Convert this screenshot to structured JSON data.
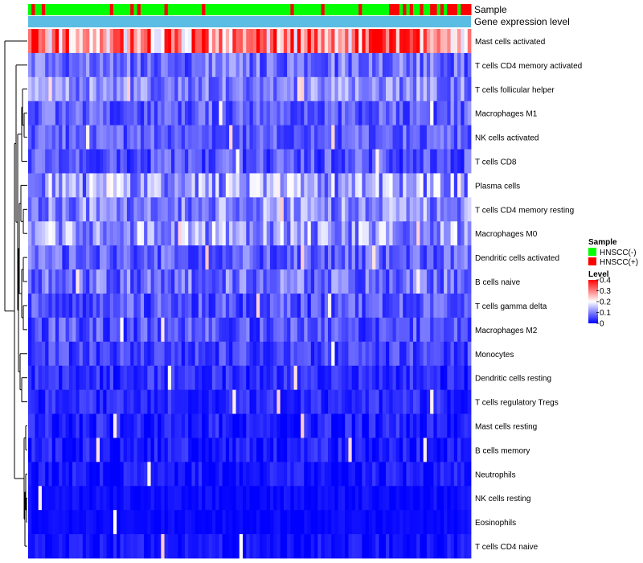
{
  "chart_data": {
    "type": "heatmap",
    "title": "",
    "column_annotations": [
      {
        "name": "Sample",
        "color_by": "group"
      },
      {
        "name": "Gene expression level",
        "color": "#5BBCE4"
      }
    ],
    "n_columns": 130,
    "group_pattern": [
      0,
      1,
      0,
      0,
      1,
      0,
      0,
      0,
      0,
      0,
      0,
      0,
      0,
      0,
      0,
      0,
      0,
      0,
      0,
      0,
      0,
      0,
      0,
      0,
      1,
      0,
      0,
      0,
      0,
      0,
      1,
      0,
      1,
      0,
      0,
      0,
      0,
      0,
      0,
      0,
      1,
      0,
      0,
      0,
      0,
      0,
      0,
      0,
      0,
      0,
      0,
      1,
      0,
      0,
      0,
      0,
      0,
      0,
      0,
      0,
      0,
      0,
      0,
      0,
      0,
      0,
      0,
      0,
      0,
      0,
      0,
      0,
      0,
      0,
      0,
      0,
      0,
      1,
      0,
      0,
      0,
      0,
      0,
      0,
      0,
      0,
      1,
      0,
      0,
      0,
      0,
      0,
      0,
      0,
      0,
      0,
      0,
      1,
      0,
      0,
      0,
      0,
      0,
      0,
      0,
      0,
      1,
      1,
      1,
      0,
      1,
      0,
      1,
      0,
      0,
      1,
      0,
      0,
      1,
      1,
      0,
      1,
      0,
      1,
      1,
      1,
      0,
      1,
      1,
      1
    ],
    "rows": [
      {
        "label": "Mast cells activated",
        "mean": 0.26,
        "spread": 0.14
      },
      {
        "label": "T cells CD4 memory activated",
        "mean": 0.07,
        "spread": 0.06
      },
      {
        "label": "T cells follicular helper",
        "mean": 0.09,
        "spread": 0.06
      },
      {
        "label": "Macrophages M1",
        "mean": 0.06,
        "spread": 0.05
      },
      {
        "label": "NK cells activated",
        "mean": 0.06,
        "spread": 0.045
      },
      {
        "label": "T cells CD8",
        "mean": 0.05,
        "spread": 0.05
      },
      {
        "label": "Plasma cells",
        "mean": 0.1,
        "spread": 0.09
      },
      {
        "label": "T cells CD4 memory resting",
        "mean": 0.09,
        "spread": 0.07
      },
      {
        "label": "Macrophages M0",
        "mean": 0.1,
        "spread": 0.08
      },
      {
        "label": "Dendritic cells activated",
        "mean": 0.06,
        "spread": 0.05
      },
      {
        "label": "B cells naive",
        "mean": 0.07,
        "spread": 0.06
      },
      {
        "label": "T cells gamma delta",
        "mean": 0.05,
        "spread": 0.05
      },
      {
        "label": "Macrophages M2",
        "mean": 0.05,
        "spread": 0.05
      },
      {
        "label": "Monocytes",
        "mean": 0.04,
        "spread": 0.04
      },
      {
        "label": "Dendritic cells resting",
        "mean": 0.025,
        "spread": 0.035
      },
      {
        "label": "T cells regulatory  Tregs",
        "mean": 0.025,
        "spread": 0.03
      },
      {
        "label": "Mast cells resting",
        "mean": 0.008,
        "spread": 0.04
      },
      {
        "label": "B cells memory",
        "mean": 0.01,
        "spread": 0.035
      },
      {
        "label": "Neutrophils",
        "mean": 0.008,
        "spread": 0.03
      },
      {
        "label": "NK cells resting",
        "mean": 0.004,
        "spread": 0.015
      },
      {
        "label": "Eosinophils",
        "mean": 0.003,
        "spread": 0.012
      },
      {
        "label": "T cells CD4 naive",
        "mean": 0.006,
        "spread": 0.025
      }
    ],
    "color_scale": {
      "min": 0,
      "mid": 0.2,
      "max": 0.4,
      "low": "#0000FF",
      "middle": "#FFFFFF",
      "high": "#FF0000"
    },
    "legend_sample": {
      "title": "Sample",
      "entries": [
        {
          "label": "HNSCC(-)",
          "color": "#00FF00"
        },
        {
          "label": "HNSCC(+)",
          "color": "#FF0000"
        }
      ]
    },
    "legend_level": {
      "title": "Level",
      "ticks": [
        "0.4",
        "0.3",
        "0.2",
        "0.1",
        "0"
      ],
      "tick_values": [
        0.4,
        0.3,
        0.2,
        0.1,
        0
      ]
    }
  }
}
